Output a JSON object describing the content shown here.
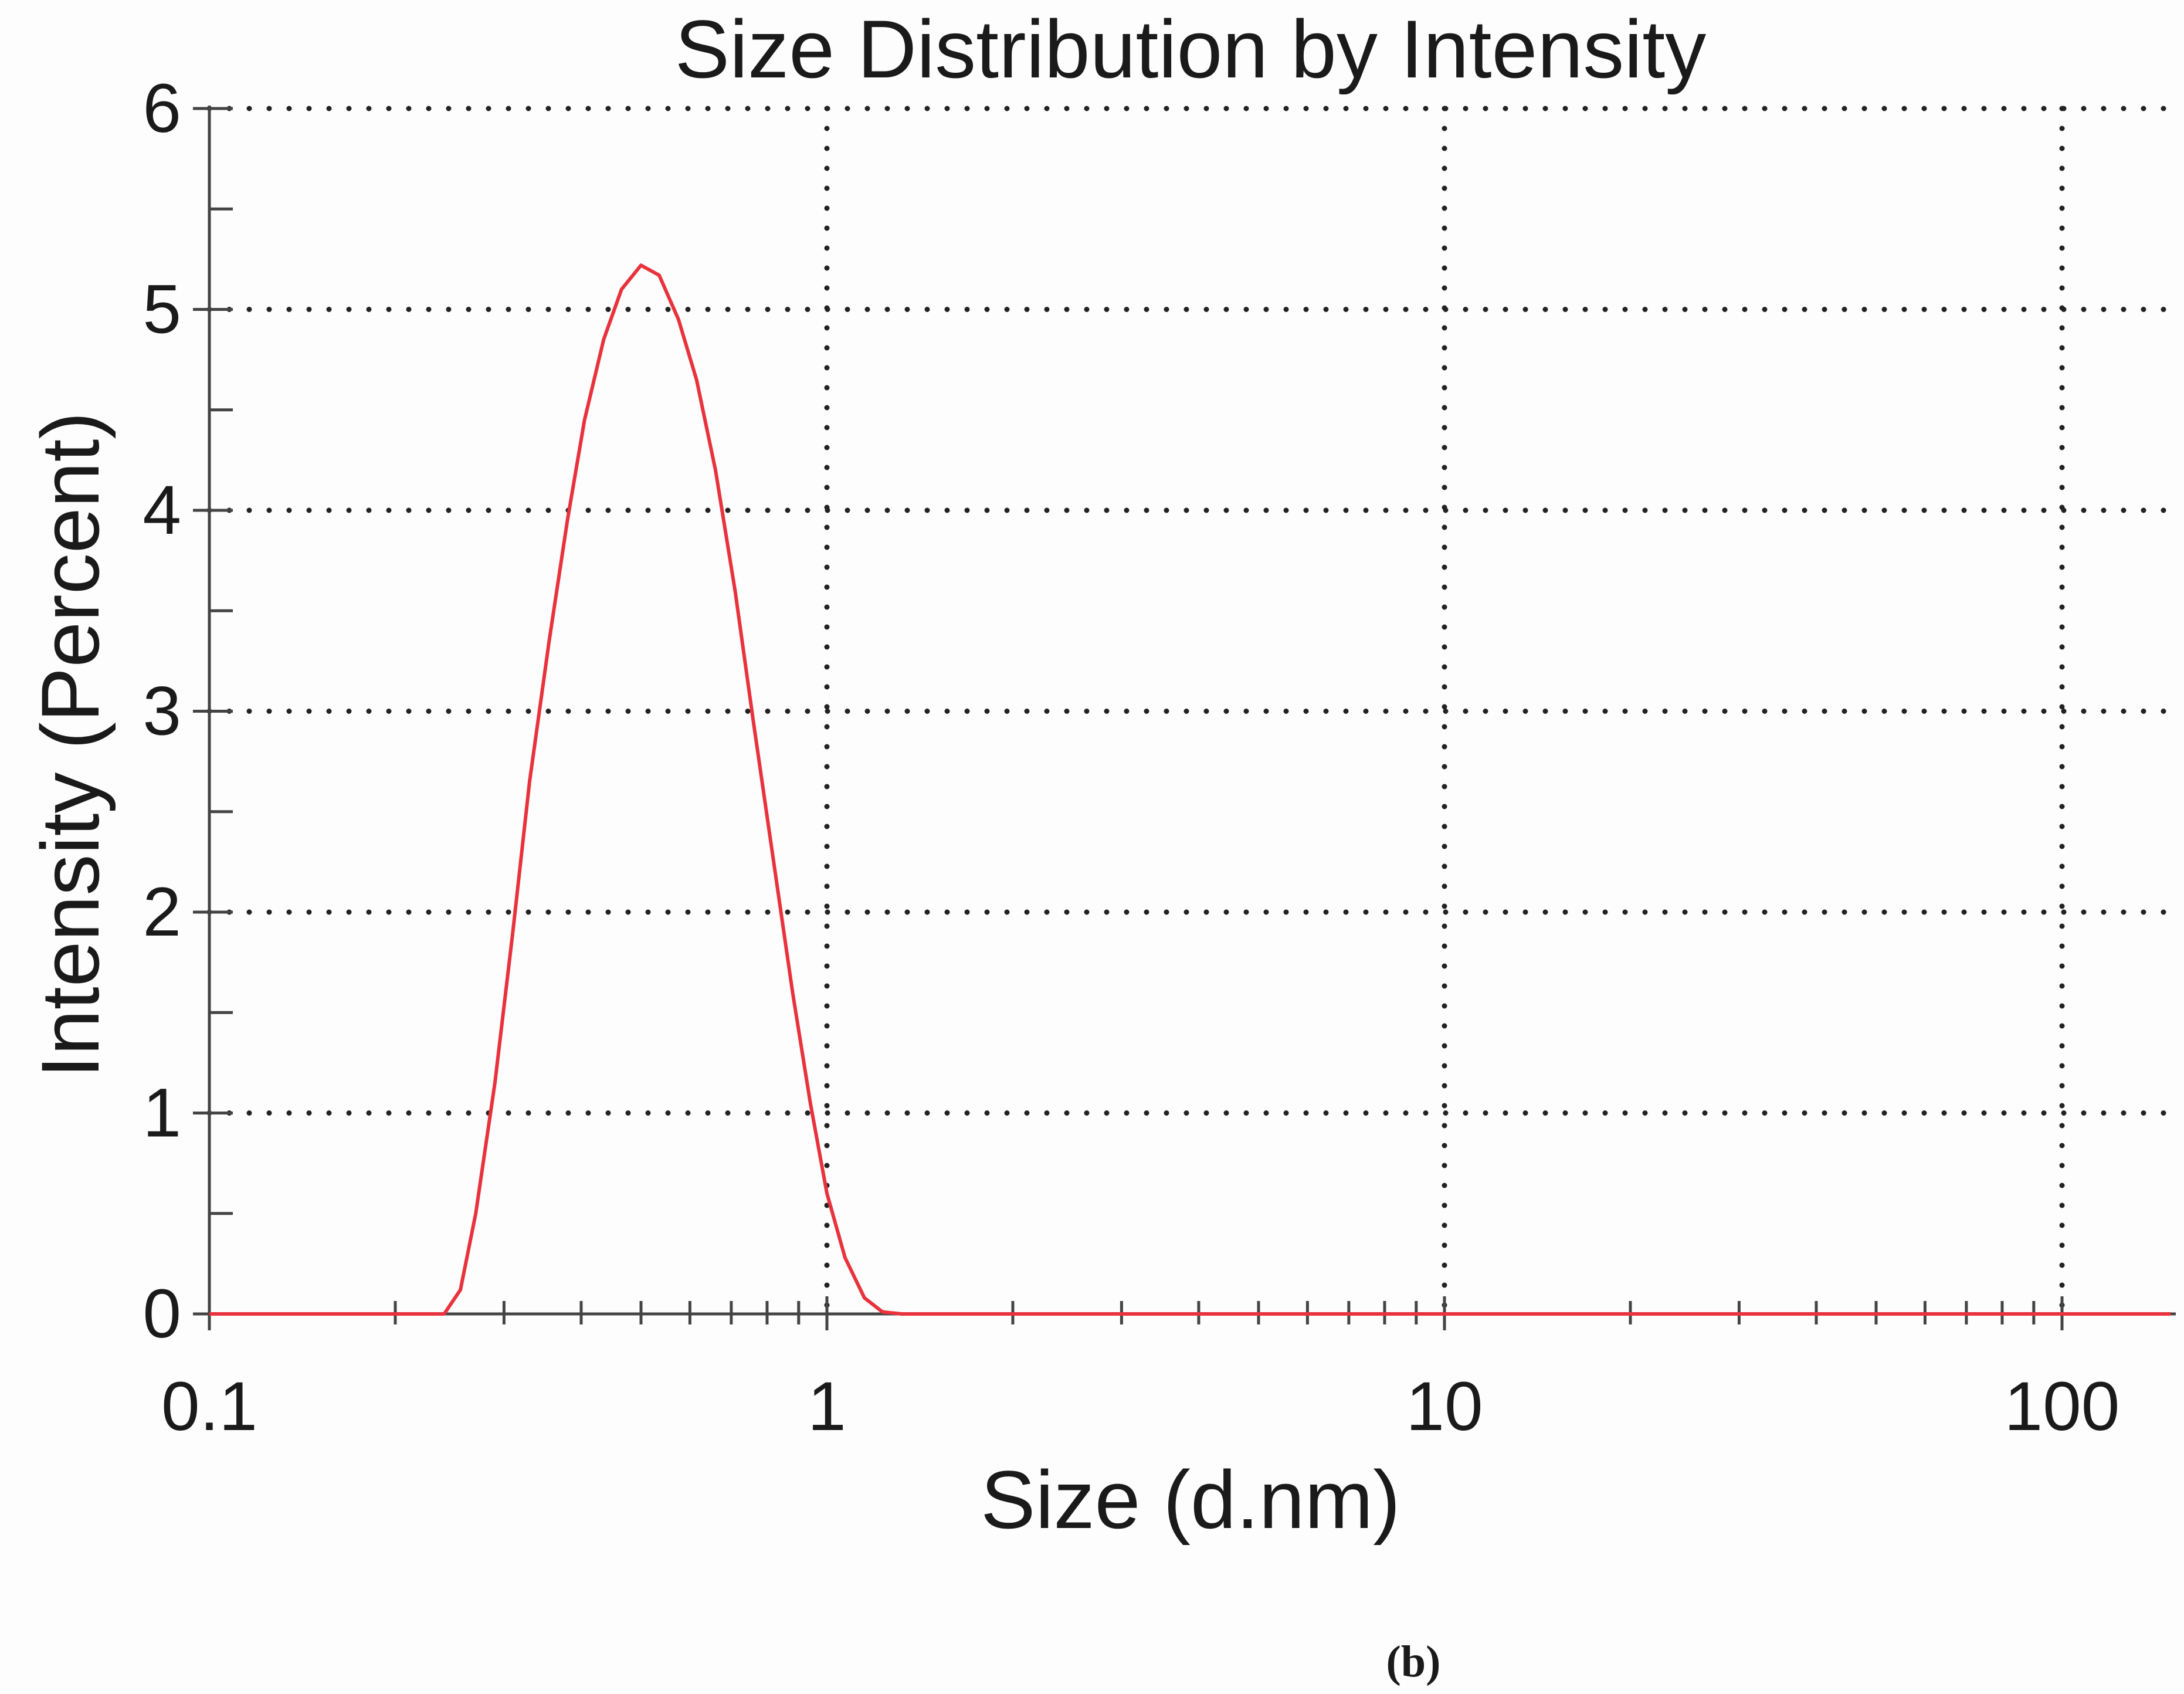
{
  "chart_data": {
    "type": "line",
    "title": "Size Distribution by Intensity",
    "xlabel": "Size (d.nm)",
    "ylabel": "Intensity (Percent)",
    "x_scale": "log",
    "xlim": [
      0.1,
      150
    ],
    "ylim": [
      0,
      6
    ],
    "x_ticks": [
      0.1,
      1,
      10,
      100
    ],
    "x_tick_labels": [
      "0.1",
      "1",
      "10",
      "100"
    ],
    "y_ticks": [
      0,
      1,
      2,
      3,
      4,
      5,
      6
    ],
    "y_tick_labels": [
      "0",
      "1",
      "2",
      "3",
      "4",
      "5",
      "6"
    ],
    "grid": true,
    "series": [
      {
        "color": "#e8323c",
        "x": [
          0.1,
          0.2,
          0.24,
          0.255,
          0.27,
          0.29,
          0.31,
          0.33,
          0.355,
          0.38,
          0.405,
          0.435,
          0.465,
          0.5,
          0.535,
          0.575,
          0.615,
          0.66,
          0.71,
          0.76,
          0.82,
          0.88,
          0.94,
          1.0,
          1.07,
          1.15,
          1.23,
          1.32,
          1.4,
          2,
          10,
          100,
          150
        ],
        "y": [
          0,
          0,
          0,
          0.12,
          0.5,
          1.15,
          1.9,
          2.65,
          3.35,
          3.95,
          4.45,
          4.85,
          5.1,
          5.22,
          5.17,
          4.95,
          4.65,
          4.2,
          3.6,
          2.95,
          2.25,
          1.6,
          1.05,
          0.6,
          0.28,
          0.08,
          0.01,
          0,
          0,
          0,
          0,
          0,
          0
        ]
      }
    ]
  },
  "panel_label": "(b)"
}
